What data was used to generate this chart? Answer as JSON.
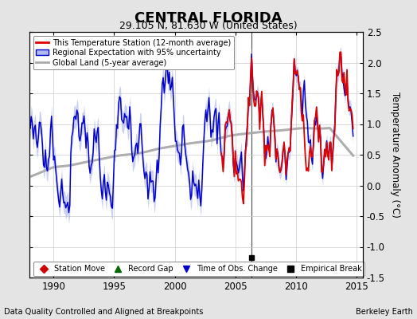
{
  "title": "CENTRAL FLORIDA",
  "subtitle": "29.105 N, 81.630 W (United States)",
  "ylabel": "Temperature Anomaly (°C)",
  "xlabel_left": "Data Quality Controlled and Aligned at Breakpoints",
  "xlabel_right": "Berkeley Earth",
  "ylim": [
    -1.5,
    2.5
  ],
  "xlim": [
    1988.0,
    2015.5
  ],
  "xticks": [
    1990,
    1995,
    2000,
    2005,
    2010,
    2015
  ],
  "yticks": [
    -1.5,
    -1.0,
    -0.5,
    0.0,
    0.5,
    1.0,
    1.5,
    2.0,
    2.5
  ],
  "color_station": "#dd0000",
  "color_regional": "#0000cc",
  "color_regional_band": "#b0b8ee",
  "color_global": "#aaaaaa",
  "color_bg": "#e4e4e4",
  "color_plot_bg": "#ffffff",
  "empirical_break_x": 2006.3,
  "empirical_break_y": -1.18,
  "legend_entries": [
    "This Temperature Station (12-month average)",
    "Regional Expectation with 95% uncertainty",
    "Global Land (5-year average)"
  ],
  "bottom_legend": [
    {
      "label": "Station Move",
      "color": "#cc0000",
      "marker": "D"
    },
    {
      "label": "Record Gap",
      "color": "#006600",
      "marker": "^"
    },
    {
      "label": "Time of Obs. Change",
      "color": "#0000cc",
      "marker": "v"
    },
    {
      "label": "Empirical Break",
      "color": "#000000",
      "marker": "s"
    }
  ]
}
